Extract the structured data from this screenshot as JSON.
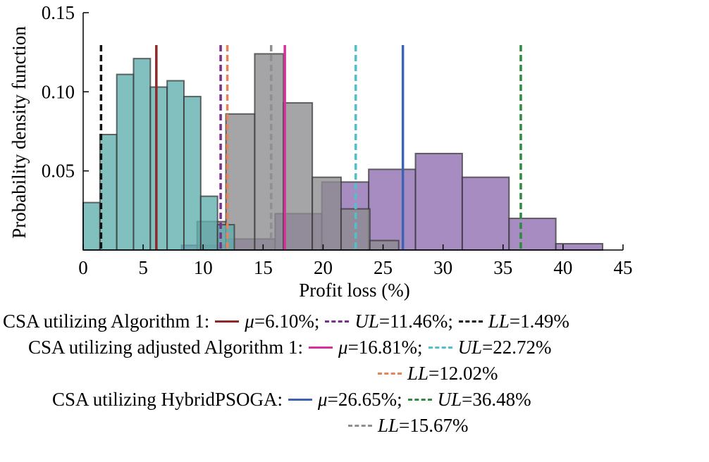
{
  "chart_data": {
    "type": "histogram",
    "xlabel": "Profit loss (%)",
    "ylabel": "Probability density function",
    "xlim": [
      0,
      45
    ],
    "ylim": [
      0,
      0.15
    ],
    "x_ticks": [
      "0",
      "5",
      "10",
      "15",
      "20",
      "25",
      "30",
      "35",
      "40",
      "45"
    ],
    "y_ticks": [
      "0.05",
      "0.10",
      "0.15"
    ],
    "grid": false,
    "series": [
      {
        "name": "CSA utilizing HybridPSOGA",
        "color": "#8e6bb0",
        "edges": [
          8.2,
          12.1,
          16.0,
          19.9,
          23.8,
          27.7,
          31.6,
          35.5,
          39.4,
          43.3
        ],
        "values": [
          0.003,
          0.007,
          0.023,
          0.043,
          0.051,
          0.061,
          0.046,
          0.02,
          0.004
        ]
      },
      {
        "name": "CSA utilizing adjusted Algorithm 1",
        "color": "#8c8c90",
        "edges": [
          9.5,
          11.9,
          14.3,
          16.7,
          19.1,
          21.5,
          23.9,
          26.3
        ],
        "values": [
          0.018,
          0.086,
          0.124,
          0.093,
          0.046,
          0.026,
          0.006
        ]
      },
      {
        "name": "CSA utilizing Algorithm 1",
        "color": "#5fadad",
        "edges": [
          0,
          1.4,
          2.8,
          4.2,
          5.6,
          7.0,
          8.4,
          9.8,
          11.2,
          12.6
        ],
        "values": [
          0.03,
          0.073,
          0.111,
          0.121,
          0.103,
          0.107,
          0.097,
          0.034,
          0.016
        ]
      }
    ],
    "vlines": [
      {
        "x": 6.1,
        "style": "solid",
        "color": "#8b2a2a"
      },
      {
        "x": 11.46,
        "style": "dashed",
        "color": "#7a2e8e"
      },
      {
        "x": 1.49,
        "style": "dashed",
        "color": "#111111"
      },
      {
        "x": 16.81,
        "style": "solid",
        "color": "#d6339a"
      },
      {
        "x": 22.72,
        "style": "dashed",
        "color": "#4fc1c9"
      },
      {
        "x": 12.02,
        "style": "dashed",
        "color": "#e8825a"
      },
      {
        "x": 26.65,
        "style": "solid",
        "color": "#3d62b0"
      },
      {
        "x": 36.48,
        "style": "dashed",
        "color": "#2e8b3e"
      },
      {
        "x": 15.67,
        "style": "dashed",
        "color": "#8f8f8f"
      }
    ]
  },
  "legend": {
    "row1": {
      "label": "CSA utilizing Algorithm 1:",
      "mu": "μ",
      "mu_val": "=6.10%;",
      "ul": "UL",
      "ul_val": "=11.46%;",
      "ll": "LL",
      "ll_val": "=1.49%",
      "mu_color": "#8b2a2a",
      "ul_color": "#7a2e8e",
      "ll_color": "#111111"
    },
    "row2": {
      "label": "CSA utilizing adjusted Algorithm 1:",
      "mu": "μ",
      "mu_val": "=16.81%;",
      "ul": "UL",
      "ul_val": "=22.72%",
      "mu_color": "#d6339a",
      "ul_color": "#4fc1c9"
    },
    "row3": {
      "ll": "LL",
      "ll_val": "=12.02%",
      "ll_color": "#e8825a"
    },
    "row4": {
      "label": "CSA utilizing HybridPSOGA:",
      "mu": "μ",
      "mu_val": "=26.65%;",
      "ul": "UL",
      "ul_val": "=36.48%",
      "mu_color": "#3d62b0",
      "ul_color": "#2e8b3e"
    },
    "row5": {
      "ll": "LL",
      "ll_val": "=15.67%",
      "ll_color": "#8f8f8f"
    }
  }
}
